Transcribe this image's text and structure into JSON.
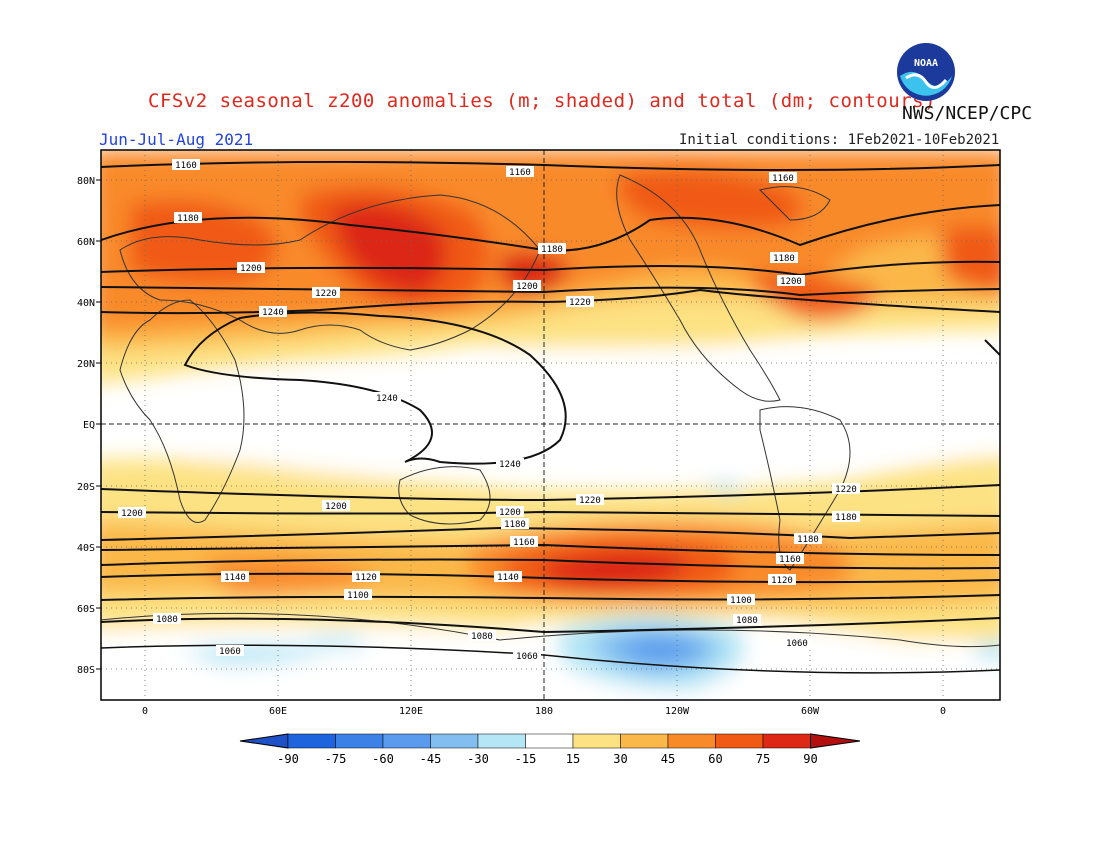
{
  "header": {
    "title": "CFSv2 seasonal z200 anomalies (m; shaded) and total (dm; contours)",
    "agency": "NWS/NCEP/CPC",
    "season": "Jun-Jul-Aug 2021",
    "initial_conditions": "Initial conditions: 1Feb2021-10Feb2021",
    "logo_text": "NOAA"
  },
  "axes": {
    "lat_labels": [
      "80N",
      "60N",
      "40N",
      "20N",
      "EQ",
      "20S",
      "40S",
      "60S",
      "80S"
    ],
    "lon_labels": [
      "0",
      "60E",
      "120E",
      "180",
      "120W",
      "60W",
      "0"
    ]
  },
  "colorbar": {
    "ticks": [
      "-90",
      "-75",
      "-60",
      "-45",
      "-30",
      "-15",
      "15",
      "30",
      "45",
      "60",
      "75",
      "90"
    ],
    "colors": [
      "#1e64dc",
      "#3c82e6",
      "#5a9bee",
      "#82bef0",
      "#b4e6f5",
      "#ffffff",
      "#fde283",
      "#fbb84a",
      "#f98a2a",
      "#f05a14",
      "#dc2814"
    ],
    "low_color": "#1e50c8",
    "high_color": "#b40f0f"
  },
  "contour_labels": [
    "1160",
    "1160",
    "1160",
    "1180",
    "1180",
    "1180",
    "1200",
    "1200",
    "1200",
    "1220",
    "1220",
    "1240",
    "1240",
    "1240",
    "1220",
    "1220",
    "1200",
    "1200",
    "1200",
    "1180",
    "1180",
    "1180",
    "1160",
    "1160",
    "1140",
    "1140",
    "1120",
    "1120",
    "1100",
    "1100",
    "1080",
    "1080",
    "1080",
    "1060",
    "1060",
    "1060"
  ]
}
